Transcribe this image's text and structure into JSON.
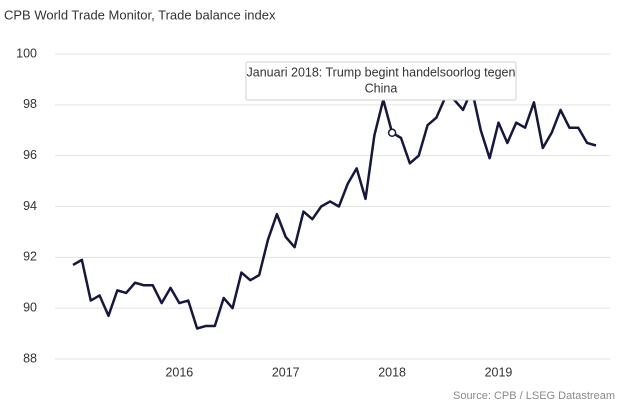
{
  "chart_data": {
    "type": "line",
    "title": "CPB World Trade Monitor, Trade balance index",
    "source": "Source: CPB / LSEG Datastream",
    "categories": [
      null,
      null,
      null,
      null,
      null,
      null,
      null,
      null,
      null,
      null,
      null,
      null,
      "2016",
      null,
      null,
      null,
      null,
      null,
      null,
      null,
      null,
      null,
      null,
      null,
      "2017",
      null,
      null,
      null,
      null,
      null,
      null,
      null,
      null,
      null,
      null,
      null,
      "2018",
      null,
      null,
      null,
      null,
      null,
      null,
      null,
      null,
      null,
      null,
      null,
      "2019",
      null,
      null,
      null,
      null,
      null,
      null,
      null,
      null,
      null,
      null,
      null
    ],
    "series": [
      {
        "name": "Trade balance index",
        "color": "#16173d",
        "values": [
          91.7,
          91.9,
          90.3,
          90.5,
          89.7,
          90.7,
          90.6,
          91.0,
          90.9,
          90.9,
          90.2,
          90.8,
          90.2,
          90.3,
          89.2,
          89.3,
          89.3,
          90.4,
          90.0,
          91.4,
          91.1,
          91.3,
          92.7,
          93.7,
          92.8,
          92.4,
          93.8,
          93.5,
          94.0,
          94.2,
          94.0,
          94.9,
          95.5,
          94.3,
          96.8,
          98.2,
          96.9,
          96.7,
          95.7,
          96.0,
          97.2,
          97.5,
          98.3,
          98.2,
          97.8,
          98.6,
          97.0,
          95.9,
          97.3,
          96.5,
          97.3,
          97.1,
          98.1,
          96.3,
          96.9,
          97.8,
          97.1,
          97.1,
          96.5,
          96.4
        ]
      }
    ],
    "ylim": [
      88,
      100
    ],
    "yticks": [
      88,
      90,
      92,
      94,
      96,
      98,
      100
    ],
    "grid": true,
    "annotation": {
      "index": 36,
      "lines": [
        "Januari 2018: Trump begint handelsoorlog tegen",
        "China"
      ]
    }
  }
}
